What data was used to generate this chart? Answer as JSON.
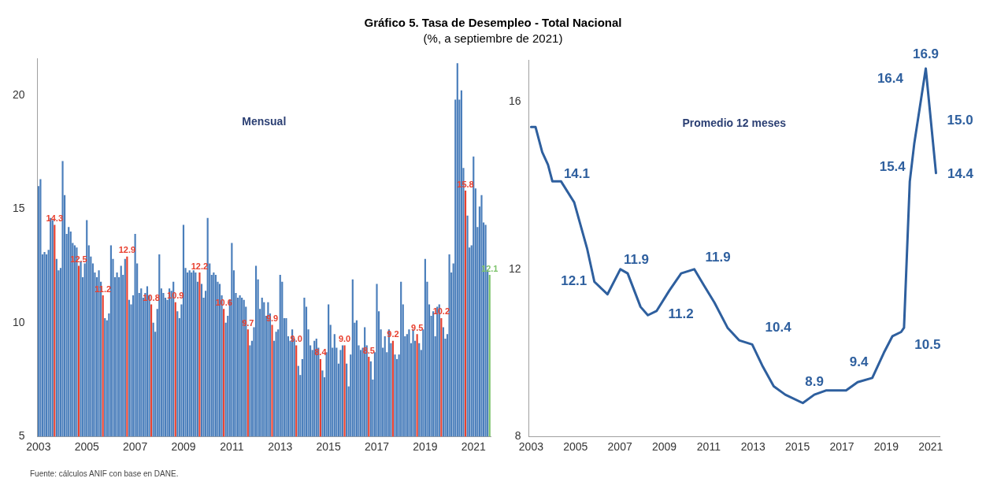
{
  "chart_data": [
    {
      "type": "other",
      "title": "Gráfico 5. Tasa de Desempleo - Total Nacional",
      "subtitle": "(%, a septiembre de 2021)",
      "annotations": [
        "Fuente: cálculos ANIF con base en DANE."
      ]
    },
    {
      "type": "bar",
      "title": "Mensual",
      "ylim": [
        5,
        21.6
      ],
      "yticks": [
        5,
        10,
        15,
        20
      ],
      "categories": [
        "2003",
        null,
        null,
        null,
        null,
        null,
        null,
        null,
        null,
        null,
        null,
        null,
        null,
        null,
        null,
        null,
        null,
        null,
        null,
        null,
        null,
        null,
        null,
        null,
        "2005",
        null,
        null,
        null,
        null,
        null,
        null,
        null,
        null,
        null,
        null,
        null,
        null,
        null,
        null,
        null,
        null,
        null,
        null,
        null,
        null,
        null,
        null,
        null,
        "2007",
        null,
        null,
        null,
        null,
        null,
        null,
        null,
        null,
        null,
        null,
        null,
        null,
        null,
        null,
        null,
        null,
        null,
        null,
        null,
        null,
        null,
        null,
        null,
        "2009",
        null,
        null,
        null,
        null,
        null,
        null,
        null,
        null,
        null,
        null,
        null,
        null,
        null,
        null,
        null,
        null,
        null,
        null,
        null,
        null,
        null,
        null,
        null,
        "2011",
        null,
        null,
        null,
        null,
        null,
        null,
        null,
        null,
        null,
        null,
        null,
        null,
        null,
        null,
        null,
        null,
        null,
        null,
        null,
        null,
        null,
        null,
        null,
        "2013",
        null,
        null,
        null,
        null,
        null,
        null,
        null,
        null,
        null,
        null,
        null,
        null,
        null,
        null,
        null,
        null,
        null,
        null,
        null,
        null,
        null,
        null,
        null,
        "2015",
        null,
        null,
        null,
        null,
        null,
        null,
        null,
        null,
        null,
        null,
        null,
        null,
        null,
        null,
        null,
        null,
        null,
        null,
        null,
        null,
        null,
        null,
        null,
        "2017",
        null,
        null,
        null,
        null,
        null,
        null,
        null,
        null,
        null,
        null,
        null,
        null,
        null,
        null,
        null,
        null,
        null,
        null,
        null,
        null,
        null,
        null,
        null,
        "2019",
        null,
        null,
        null,
        null,
        null,
        null,
        null,
        null,
        null,
        null,
        null,
        null,
        null,
        null,
        null,
        null,
        null,
        null,
        null,
        null,
        null,
        null,
        null,
        "2021",
        null,
        null,
        null,
        null,
        null,
        null,
        null,
        null
      ],
      "values": [
        16.0,
        16.3,
        13.0,
        13.1,
        13.0,
        13.2,
        14.6,
        14.5,
        14.3,
        12.8,
        12.3,
        12.4,
        17.1,
        15.6,
        13.9,
        14.2,
        14.0,
        13.5,
        13.4,
        13.3,
        12.5,
        12.7,
        12.0,
        12.6,
        14.5,
        13.4,
        12.9,
        12.6,
        12.2,
        12.0,
        12.3,
        11.8,
        11.2,
        10.2,
        10.1,
        10.4,
        13.4,
        12.8,
        12.0,
        12.2,
        12.0,
        12.5,
        12.1,
        12.8,
        12.9,
        11.0,
        10.8,
        11.2,
        13.9,
        12.6,
        11.3,
        11.5,
        11.1,
        11.3,
        11.6,
        11.2,
        10.8,
        10.0,
        9.6,
        10.6,
        13.0,
        11.5,
        11.3,
        11.1,
        11.0,
        11.5,
        11.4,
        11.8,
        10.9,
        10.5,
        10.2,
        10.8,
        14.3,
        12.4,
        12.2,
        12.3,
        12.2,
        12.3,
        12.2,
        11.8,
        12.2,
        11.7,
        11.1,
        11.4,
        14.6,
        12.6,
        12.1,
        12.2,
        12.1,
        11.8,
        11.7,
        11.2,
        10.6,
        10.0,
        10.3,
        11.0,
        13.5,
        12.3,
        11.3,
        11.1,
        11.2,
        11.1,
        11.0,
        10.7,
        9.7,
        9.0,
        9.2,
        9.8,
        12.5,
        11.9,
        10.6,
        11.1,
        10.9,
        10.3,
        10.9,
        10.4,
        9.9,
        9.2,
        9.6,
        9.7,
        12.1,
        11.8,
        10.2,
        10.2,
        9.4,
        9.2,
        9.7,
        9.3,
        9.0,
        8.1,
        7.7,
        8.4,
        11.1,
        10.7,
        9.7,
        9.0,
        8.8,
        9.2,
        9.3,
        8.9,
        8.4,
        7.9,
        7.6,
        8.7,
        10.8,
        9.9,
        8.9,
        9.5,
        8.9,
        8.2,
        8.8,
        9.0,
        9.0,
        8.2,
        7.2,
        8.6,
        11.9,
        10.0,
        10.1,
        9.0,
        8.8,
        8.9,
        9.8,
        9.0,
        8.5,
        8.3,
        7.5,
        8.7,
        11.7,
        10.5,
        9.7,
        8.9,
        9.4,
        8.7,
        9.7,
        9.1,
        9.2,
        8.6,
        8.4,
        8.6,
        11.8,
        10.8,
        9.4,
        9.5,
        9.7,
        9.1,
        9.7,
        9.2,
        9.5,
        9.1,
        8.8,
        9.7,
        12.8,
        11.8,
        10.8,
        10.3,
        10.5,
        9.4,
        10.7,
        10.8,
        10.2,
        9.8,
        9.3,
        9.5,
        13.0,
        12.2,
        12.6,
        19.8,
        21.4,
        19.8,
        20.2,
        16.8,
        15.8,
        14.7,
        13.3,
        13.4,
        17.3,
        15.9,
        14.2,
        15.1,
        15.6,
        14.4,
        14.3,
        12.3,
        12.1
      ],
      "value_labels": [
        null,
        null,
        null,
        null,
        null,
        null,
        null,
        null,
        "14.3",
        null,
        null,
        null,
        null,
        null,
        null,
        null,
        null,
        null,
        null,
        null,
        "12.5",
        null,
        null,
        null,
        null,
        null,
        null,
        null,
        null,
        null,
        null,
        null,
        "11.2",
        null,
        null,
        null,
        null,
        null,
        null,
        null,
        null,
        null,
        null,
        null,
        "12.9",
        null,
        null,
        null,
        null,
        null,
        null,
        null,
        null,
        null,
        null,
        null,
        "10.8",
        null,
        null,
        null,
        null,
        null,
        null,
        null,
        null,
        null,
        null,
        null,
        "10.9",
        null,
        null,
        null,
        null,
        null,
        null,
        null,
        null,
        null,
        null,
        null,
        "12.2",
        null,
        null,
        null,
        null,
        null,
        null,
        null,
        null,
        null,
        null,
        null,
        "10.6",
        null,
        null,
        null,
        null,
        null,
        null,
        null,
        null,
        null,
        null,
        null,
        "9.7",
        null,
        null,
        null,
        null,
        null,
        null,
        null,
        null,
        null,
        null,
        null,
        "9.9",
        null,
        null,
        null,
        null,
        null,
        null,
        null,
        null,
        null,
        null,
        null,
        "9.0",
        null,
        null,
        null,
        null,
        null,
        null,
        null,
        null,
        null,
        null,
        null,
        "8.4",
        null,
        null,
        null,
        null,
        null,
        null,
        null,
        null,
        null,
        null,
        null,
        "9.0",
        null,
        null,
        null,
        null,
        null,
        null,
        null,
        null,
        null,
        null,
        null,
        "8.5",
        null,
        null,
        null,
        null,
        null,
        null,
        null,
        null,
        null,
        null,
        null,
        "9.2",
        null,
        null,
        null,
        null,
        null,
        null,
        null,
        null,
        null,
        null,
        null,
        "9.5",
        null,
        null,
        null,
        null,
        null,
        null,
        null,
        null,
        null,
        null,
        null,
        "10.2",
        null,
        null,
        null,
        null,
        null,
        null,
        null,
        null,
        null,
        null,
        null,
        "15.8",
        null,
        null,
        null,
        null,
        null,
        null,
        null,
        null,
        null,
        null,
        null,
        "12.1"
      ],
      "colors": [
        "#4a7ebb",
        "#4a7ebb",
        "#4a7ebb",
        "#4a7ebb",
        "#4a7ebb",
        "#4a7ebb",
        "#4a7ebb",
        "#4a7ebb",
        "#e8402f",
        "#4a7ebb",
        "#4a7ebb",
        "#4a7ebb",
        "#4a7ebb",
        "#4a7ebb",
        "#4a7ebb",
        "#4a7ebb",
        "#4a7ebb",
        "#4a7ebb",
        "#4a7ebb",
        "#4a7ebb",
        "#e8402f",
        "#4a7ebb",
        "#4a7ebb",
        "#4a7ebb",
        "#4a7ebb",
        "#4a7ebb",
        "#4a7ebb",
        "#4a7ebb",
        "#4a7ebb",
        "#4a7ebb",
        "#4a7ebb",
        "#4a7ebb",
        "#e8402f",
        "#4a7ebb",
        "#4a7ebb",
        "#4a7ebb",
        "#4a7ebb",
        "#4a7ebb",
        "#4a7ebb",
        "#4a7ebb",
        "#4a7ebb",
        "#4a7ebb",
        "#4a7ebb",
        "#4a7ebb",
        "#e8402f",
        "#4a7ebb",
        "#4a7ebb",
        "#4a7ebb",
        "#4a7ebb",
        "#4a7ebb",
        "#4a7ebb",
        "#4a7ebb",
        "#4a7ebb",
        "#4a7ebb",
        "#4a7ebb",
        "#4a7ebb",
        "#e8402f",
        "#4a7ebb",
        "#4a7ebb",
        "#4a7ebb",
        "#4a7ebb",
        "#4a7ebb",
        "#4a7ebb",
        "#4a7ebb",
        "#4a7ebb",
        "#4a7ebb",
        "#4a7ebb",
        "#4a7ebb",
        "#e8402f",
        "#4a7ebb",
        "#4a7ebb",
        "#4a7ebb",
        "#4a7ebb",
        "#4a7ebb",
        "#4a7ebb",
        "#4a7ebb",
        "#4a7ebb",
        "#4a7ebb",
        "#4a7ebb",
        "#4a7ebb",
        "#e8402f",
        "#4a7ebb",
        "#4a7ebb",
        "#4a7ebb",
        "#4a7ebb",
        "#4a7ebb",
        "#4a7ebb",
        "#4a7ebb",
        "#4a7ebb",
        "#4a7ebb",
        "#4a7ebb",
        "#4a7ebb",
        "#e8402f",
        "#4a7ebb",
        "#4a7ebb",
        "#4a7ebb",
        "#4a7ebb",
        "#4a7ebb",
        "#4a7ebb",
        "#4a7ebb",
        "#4a7ebb",
        "#4a7ebb",
        "#4a7ebb",
        "#4a7ebb",
        "#e8402f",
        "#4a7ebb",
        "#4a7ebb",
        "#4a7ebb",
        "#4a7ebb",
        "#4a7ebb",
        "#4a7ebb",
        "#4a7ebb",
        "#4a7ebb",
        "#4a7ebb",
        "#4a7ebb",
        "#4a7ebb",
        "#e8402f",
        "#4a7ebb",
        "#4a7ebb",
        "#4a7ebb",
        "#4a7ebb",
        "#4a7ebb",
        "#4a7ebb",
        "#4a7ebb",
        "#4a7ebb",
        "#4a7ebb",
        "#4a7ebb",
        "#4a7ebb",
        "#e8402f",
        "#4a7ebb",
        "#4a7ebb",
        "#4a7ebb",
        "#4a7ebb",
        "#4a7ebb",
        "#4a7ebb",
        "#4a7ebb",
        "#4a7ebb",
        "#4a7ebb",
        "#4a7ebb",
        "#4a7ebb",
        "#e8402f",
        "#4a7ebb",
        "#4a7ebb",
        "#4a7ebb",
        "#4a7ebb",
        "#4a7ebb",
        "#4a7ebb",
        "#4a7ebb",
        "#4a7ebb",
        "#4a7ebb",
        "#4a7ebb",
        "#4a7ebb",
        "#e8402f",
        "#4a7ebb",
        "#4a7ebb",
        "#4a7ebb",
        "#4a7ebb",
        "#4a7ebb",
        "#4a7ebb",
        "#4a7ebb",
        "#4a7ebb",
        "#4a7ebb",
        "#4a7ebb",
        "#4a7ebb",
        "#e8402f",
        "#4a7ebb",
        "#4a7ebb",
        "#4a7ebb",
        "#4a7ebb",
        "#4a7ebb",
        "#4a7ebb",
        "#4a7ebb",
        "#4a7ebb",
        "#4a7ebb",
        "#4a7ebb",
        "#4a7ebb",
        "#e8402f",
        "#4a7ebb",
        "#4a7ebb",
        "#4a7ebb",
        "#4a7ebb",
        "#4a7ebb",
        "#4a7ebb",
        "#4a7ebb",
        "#4a7ebb",
        "#4a7ebb",
        "#4a7ebb",
        "#4a7ebb",
        "#e8402f",
        "#4a7ebb",
        "#4a7ebb",
        "#4a7ebb",
        "#4a7ebb",
        "#4a7ebb",
        "#4a7ebb",
        "#4a7ebb",
        "#4a7ebb",
        "#4a7ebb",
        "#4a7ebb",
        "#4a7ebb",
        "#e8402f",
        "#4a7ebb",
        "#4a7ebb",
        "#4a7ebb",
        "#4a7ebb",
        "#4a7ebb",
        "#4a7ebb",
        "#4a7ebb",
        "#4a7ebb",
        "#4a7ebb",
        "#4a7ebb",
        "#4a7ebb",
        "#e8402f",
        "#4a7ebb",
        "#4a7ebb",
        "#4a7ebb",
        "#4a7ebb",
        "#4a7ebb",
        "#4a7ebb",
        "#4a7ebb",
        "#4a7ebb",
        "#4a7ebb",
        "#4a7ebb",
        "#4a7ebb",
        "#7cc26a"
      ]
    },
    {
      "type": "line",
      "title": "Promedio 12 meses",
      "color": "#2e5f9e",
      "xlim": [
        2002.9,
        2021.4
      ],
      "xticks": [
        2003,
        2005,
        2007,
        2009,
        2011,
        2013,
        2015,
        2017,
        2019,
        2021
      ],
      "ylim": [
        8,
        17
      ],
      "yticks": [
        8,
        12,
        16
      ],
      "x": [
        2003.0,
        2003.2,
        2003.5,
        2003.76,
        2003.96,
        2004.35,
        2004.94,
        2005.52,
        2005.85,
        2006.44,
        2007.02,
        2007.35,
        2007.93,
        2008.26,
        2008.65,
        2009.24,
        2009.76,
        2010.35,
        2010.8,
        2011.26,
        2011.85,
        2012.37,
        2012.96,
        2013.41,
        2013.93,
        2014.45,
        2015.24,
        2015.76,
        2016.28,
        2017.19,
        2017.71,
        2018.37,
        2018.89,
        2019.28,
        2019.67,
        2019.8,
        2020.06,
        2020.26,
        2020.78,
        2021.24
      ],
      "values": [
        15.4,
        15.4,
        14.8,
        14.5,
        14.1,
        14.1,
        13.6,
        12.5,
        11.7,
        11.4,
        12.0,
        11.9,
        11.1,
        10.9,
        11.0,
        11.5,
        11.9,
        12.0,
        11.6,
        11.2,
        10.6,
        10.3,
        10.2,
        9.7,
        9.2,
        9.0,
        8.8,
        9.0,
        9.1,
        9.1,
        9.3,
        9.4,
        10.0,
        10.4,
        10.5,
        10.6,
        14.1,
        15.0,
        16.8,
        14.3
      ],
      "annotations": [
        {
          "text": "14.1",
          "x": 2004.35,
          "y": 14.1
        },
        {
          "text": "12.1",
          "x": 2005.85,
          "y": 11.7
        },
        {
          "text": "11.9",
          "x": 2007.35,
          "y": 11.9
        },
        {
          "text": "11.2",
          "x": 2008.65,
          "y": 11.0
        },
        {
          "text": "11.9",
          "x": 2010.35,
          "y": 12.0
        },
        {
          "text": "10.4",
          "x": 2012.96,
          "y": 10.2
        },
        {
          "text": "8.9",
          "x": 2015.76,
          "y": 9.0
        },
        {
          "text": "9.4",
          "x": 2018.37,
          "y": 9.4
        },
        {
          "text": "10.5",
          "x": 2019.8,
          "y": 10.6
        },
        {
          "text": "15.4",
          "x": 2020.06,
          "y": 14.1
        },
        "16.4",
        {
          "text": "16.9",
          "x": 2020.78,
          "y": 16.8
        },
        "15.0",
        {
          "text": "14.4",
          "x": 2021.24,
          "y": 14.3
        }
      ]
    }
  ]
}
